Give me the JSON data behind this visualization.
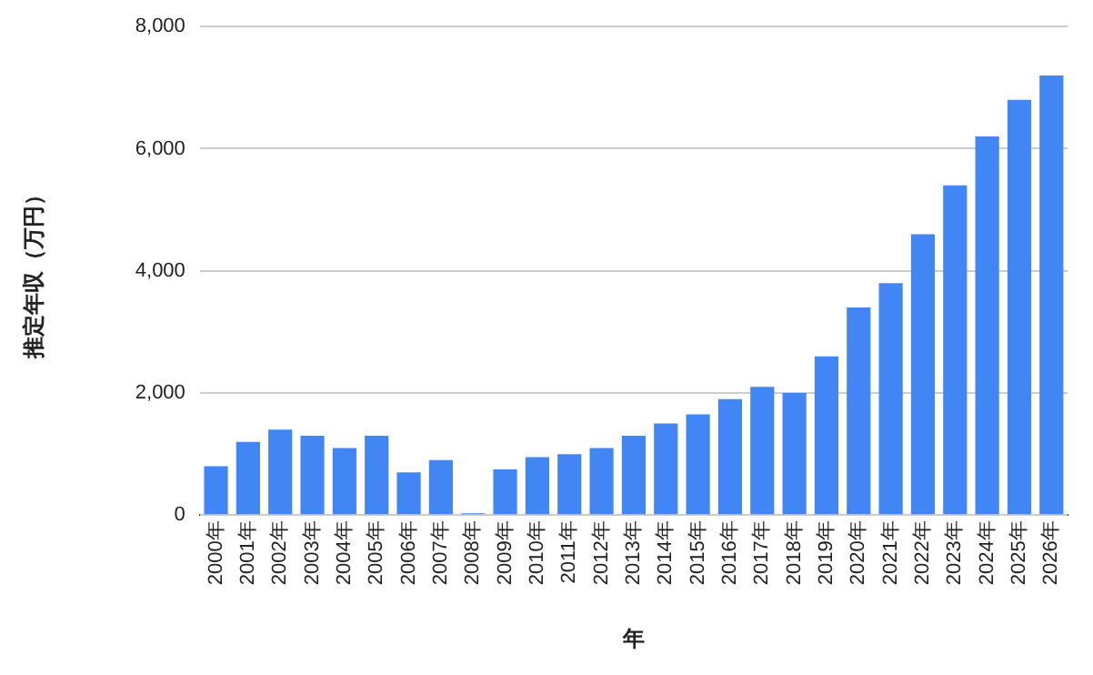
{
  "chart_data": {
    "type": "bar",
    "xlabel": "年",
    "ylabel": "推定年収（万円）",
    "categories": [
      "2000年",
      "2001年",
      "2002年",
      "2003年",
      "2004年",
      "2005年",
      "2006年",
      "2007年",
      "2008年",
      "2009年",
      "2010年",
      "2011年",
      "2012年",
      "2013年",
      "2014年",
      "2015年",
      "2016年",
      "2017年",
      "2018年",
      "2019年",
      "2020年",
      "2021年",
      "2022年",
      "2023年",
      "2024年",
      "2025年",
      "2026年"
    ],
    "values": [
      800,
      1200,
      1400,
      1300,
      1100,
      1300,
      700,
      900,
      30,
      750,
      950,
      1000,
      1100,
      1300,
      1500,
      1650,
      1900,
      2100,
      2000,
      2600,
      3400,
      3800,
      4600,
      5400,
      6200,
      6800,
      7200
    ],
    "color": "#4285f4",
    "ylim": [
      0,
      8000
    ],
    "yticks": [
      0,
      {
        "value": 2000,
        "label": "2,000"
      },
      {
        "value": 4000,
        "label": "4,000"
      },
      {
        "value": 6000,
        "label": "6,000"
      },
      {
        "value": 8000,
        "label": "8,000"
      }
    ],
    "grid": "y"
  }
}
